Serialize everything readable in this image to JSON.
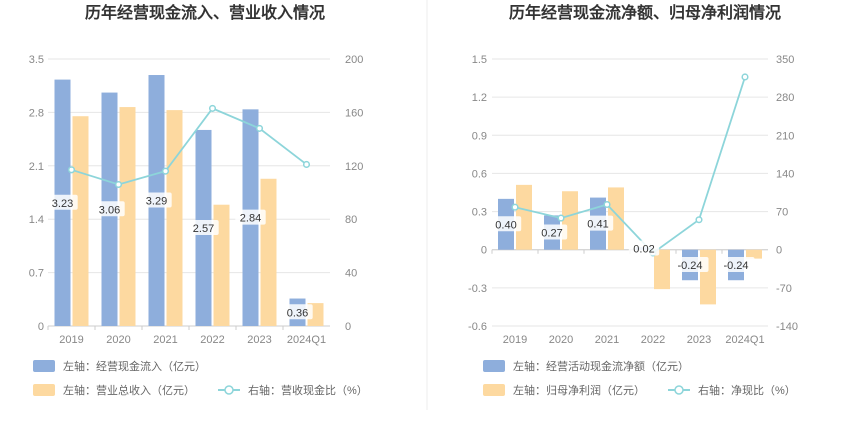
{
  "chart_data": [
    {
      "type": "bar",
      "title": "历年经营现金流入、营业收入情况",
      "categories": [
        "2019",
        "2020",
        "2021",
        "2022",
        "2023",
        "2024Q1"
      ],
      "y_left": {
        "ticks": [
          "0",
          "0.7",
          "1.4",
          "2.1",
          "2.8",
          "3.5"
        ],
        "ylim": [
          0,
          3.5
        ]
      },
      "y_right": {
        "ticks": [
          "0",
          "40",
          "80",
          "120",
          "160",
          "200"
        ],
        "ylim": [
          0,
          200
        ]
      },
      "series": [
        {
          "name": "左轴：经营现金流入（亿元）",
          "axis": "left",
          "kind": "bar",
          "color": "#8eaedc",
          "values": [
            3.23,
            3.06,
            3.29,
            2.57,
            2.84,
            0.36
          ],
          "labels": [
            "3.23",
            "3.06",
            "3.29",
            "2.57",
            "2.84",
            "0.36"
          ]
        },
        {
          "name": "左轴：营业总收入（亿元）",
          "axis": "left",
          "kind": "bar",
          "color": "#fdd9a0",
          "values": [
            2.75,
            2.87,
            2.83,
            1.59,
            1.93,
            0.3
          ]
        },
        {
          "name": "右轴：营收现金比（%）",
          "axis": "right",
          "kind": "line",
          "color": "#8dd5da",
          "values": [
            117,
            106,
            116,
            163,
            148,
            121
          ]
        }
      ],
      "grid": true,
      "legend_position": "bottom"
    },
    {
      "type": "bar",
      "title": "历年经营现金流净额、归母净利润情况",
      "categories": [
        "2019",
        "2020",
        "2021",
        "2022",
        "2023",
        "2024Q1"
      ],
      "y_left": {
        "ticks": [
          "-0.6",
          "-0.3",
          "0",
          "0.3",
          "0.6",
          "0.9",
          "1.2",
          "1.5"
        ],
        "ylim": [
          -0.6,
          1.5
        ]
      },
      "y_right": {
        "ticks": [
          "-140",
          "-70",
          "0",
          "70",
          "140",
          "210",
          "280",
          "350"
        ],
        "ylim": [
          -140,
          350
        ]
      },
      "series": [
        {
          "name": "左轴：经营活动现金流净额（亿元）",
          "axis": "left",
          "kind": "bar",
          "color": "#8eaedc",
          "values": [
            0.4,
            0.27,
            0.41,
            0.02,
            -0.24,
            -0.24
          ],
          "labels": [
            "0.40",
            "0.27",
            "0.41",
            "0.02",
            "-0.24",
            "-0.24"
          ]
        },
        {
          "name": "左轴：归母净利润（亿元）",
          "axis": "left",
          "kind": "bar",
          "color": "#fdd9a0",
          "values": [
            0.51,
            0.46,
            0.49,
            -0.31,
            -0.43,
            -0.07
          ]
        },
        {
          "name": "右轴：净现比（%）",
          "axis": "right",
          "kind": "line",
          "color": "#8dd5da",
          "values": [
            78,
            58,
            83,
            -6,
            55,
            317
          ]
        }
      ],
      "grid": true,
      "legend_position": "bottom"
    }
  ]
}
